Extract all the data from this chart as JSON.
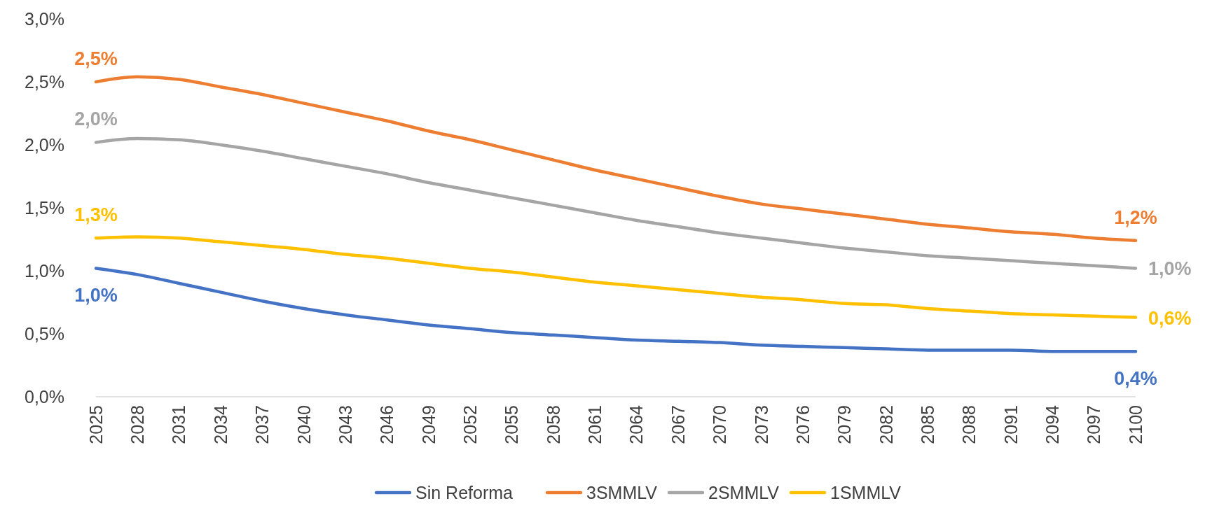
{
  "chart_data": {
    "type": "line",
    "x": [
      2025,
      2028,
      2031,
      2034,
      2037,
      2040,
      2043,
      2046,
      2049,
      2052,
      2055,
      2058,
      2061,
      2064,
      2067,
      2070,
      2073,
      2076,
      2079,
      2082,
      2085,
      2088,
      2091,
      2094,
      2097,
      2100
    ],
    "series": [
      {
        "name": "Sin Reforma",
        "color": "#4472c4",
        "values": [
          1.02,
          0.97,
          0.9,
          0.83,
          0.76,
          0.7,
          0.65,
          0.61,
          0.57,
          0.54,
          0.51,
          0.49,
          0.47,
          0.45,
          0.44,
          0.43,
          0.41,
          0.4,
          0.39,
          0.38,
          0.37,
          0.37,
          0.37,
          0.36,
          0.36,
          0.36
        ],
        "value_labels": [
          "1,0%",
          null,
          null,
          null,
          null,
          null,
          null,
          null,
          null,
          null,
          null,
          null,
          null,
          null,
          null,
          null,
          null,
          null,
          null,
          null,
          null,
          null,
          null,
          null,
          null,
          "0,4%"
        ]
      },
      {
        "name": "3SMMLV",
        "color": "#ed7d31",
        "values": [
          2.5,
          2.54,
          2.52,
          2.46,
          2.4,
          2.33,
          2.26,
          2.19,
          2.11,
          2.04,
          1.96,
          1.88,
          1.8,
          1.73,
          1.66,
          1.59,
          1.53,
          1.49,
          1.45,
          1.41,
          1.37,
          1.34,
          1.31,
          1.29,
          1.26,
          1.24
        ],
        "value_labels": [
          "2,5%",
          null,
          null,
          null,
          null,
          null,
          null,
          null,
          null,
          null,
          null,
          null,
          null,
          null,
          null,
          null,
          null,
          null,
          null,
          null,
          null,
          null,
          null,
          null,
          null,
          "1,2%"
        ]
      },
      {
        "name": "2SMMLV",
        "color": "#a5a5a5",
        "values": [
          2.02,
          2.05,
          2.04,
          2.0,
          1.95,
          1.89,
          1.83,
          1.77,
          1.7,
          1.64,
          1.58,
          1.52,
          1.46,
          1.4,
          1.35,
          1.3,
          1.26,
          1.22,
          1.18,
          1.15,
          1.12,
          1.1,
          1.08,
          1.06,
          1.04,
          1.02
        ],
        "value_labels": [
          "2,0%",
          null,
          null,
          null,
          null,
          null,
          null,
          null,
          null,
          null,
          null,
          null,
          null,
          null,
          null,
          null,
          null,
          null,
          null,
          null,
          null,
          null,
          null,
          null,
          null,
          "1,0%"
        ]
      },
      {
        "name": "1SMMLV",
        "color": "#ffc000",
        "values": [
          1.26,
          1.27,
          1.26,
          1.23,
          1.2,
          1.17,
          1.13,
          1.1,
          1.06,
          1.02,
          0.99,
          0.95,
          0.91,
          0.88,
          0.85,
          0.82,
          0.79,
          0.77,
          0.74,
          0.73,
          0.7,
          0.68,
          0.66,
          0.65,
          0.64,
          0.63
        ],
        "value_labels": [
          "1,3%",
          null,
          null,
          null,
          null,
          null,
          null,
          null,
          null,
          null,
          null,
          null,
          null,
          null,
          null,
          null,
          null,
          null,
          null,
          null,
          null,
          null,
          null,
          null,
          null,
          "0,6%"
        ]
      }
    ],
    "xlim": [
      2025,
      2100
    ],
    "xticks": [
      2025,
      2028,
      2031,
      2034,
      2037,
      2040,
      2043,
      2046,
      2049,
      2052,
      2055,
      2058,
      2061,
      2064,
      2067,
      2070,
      2073,
      2076,
      2079,
      2082,
      2085,
      2088,
      2091,
      2094,
      2097,
      2100
    ],
    "ylim": [
      0,
      3
    ],
    "yticks": [
      {
        "value": 0,
        "label": "0,0%"
      },
      {
        "value": 0.5,
        "label": "0,5%"
      },
      {
        "value": 1,
        "label": "1,0%"
      },
      {
        "value": 1.5,
        "label": "1,5%"
      },
      {
        "value": 2,
        "label": "2,0%"
      },
      {
        "value": 2.5,
        "label": "2,5%"
      },
      {
        "value": 3,
        "label": "3,0%"
      }
    ],
    "grid": false,
    "legend": "bottom",
    "marker": "none",
    "line_style": "solid"
  }
}
